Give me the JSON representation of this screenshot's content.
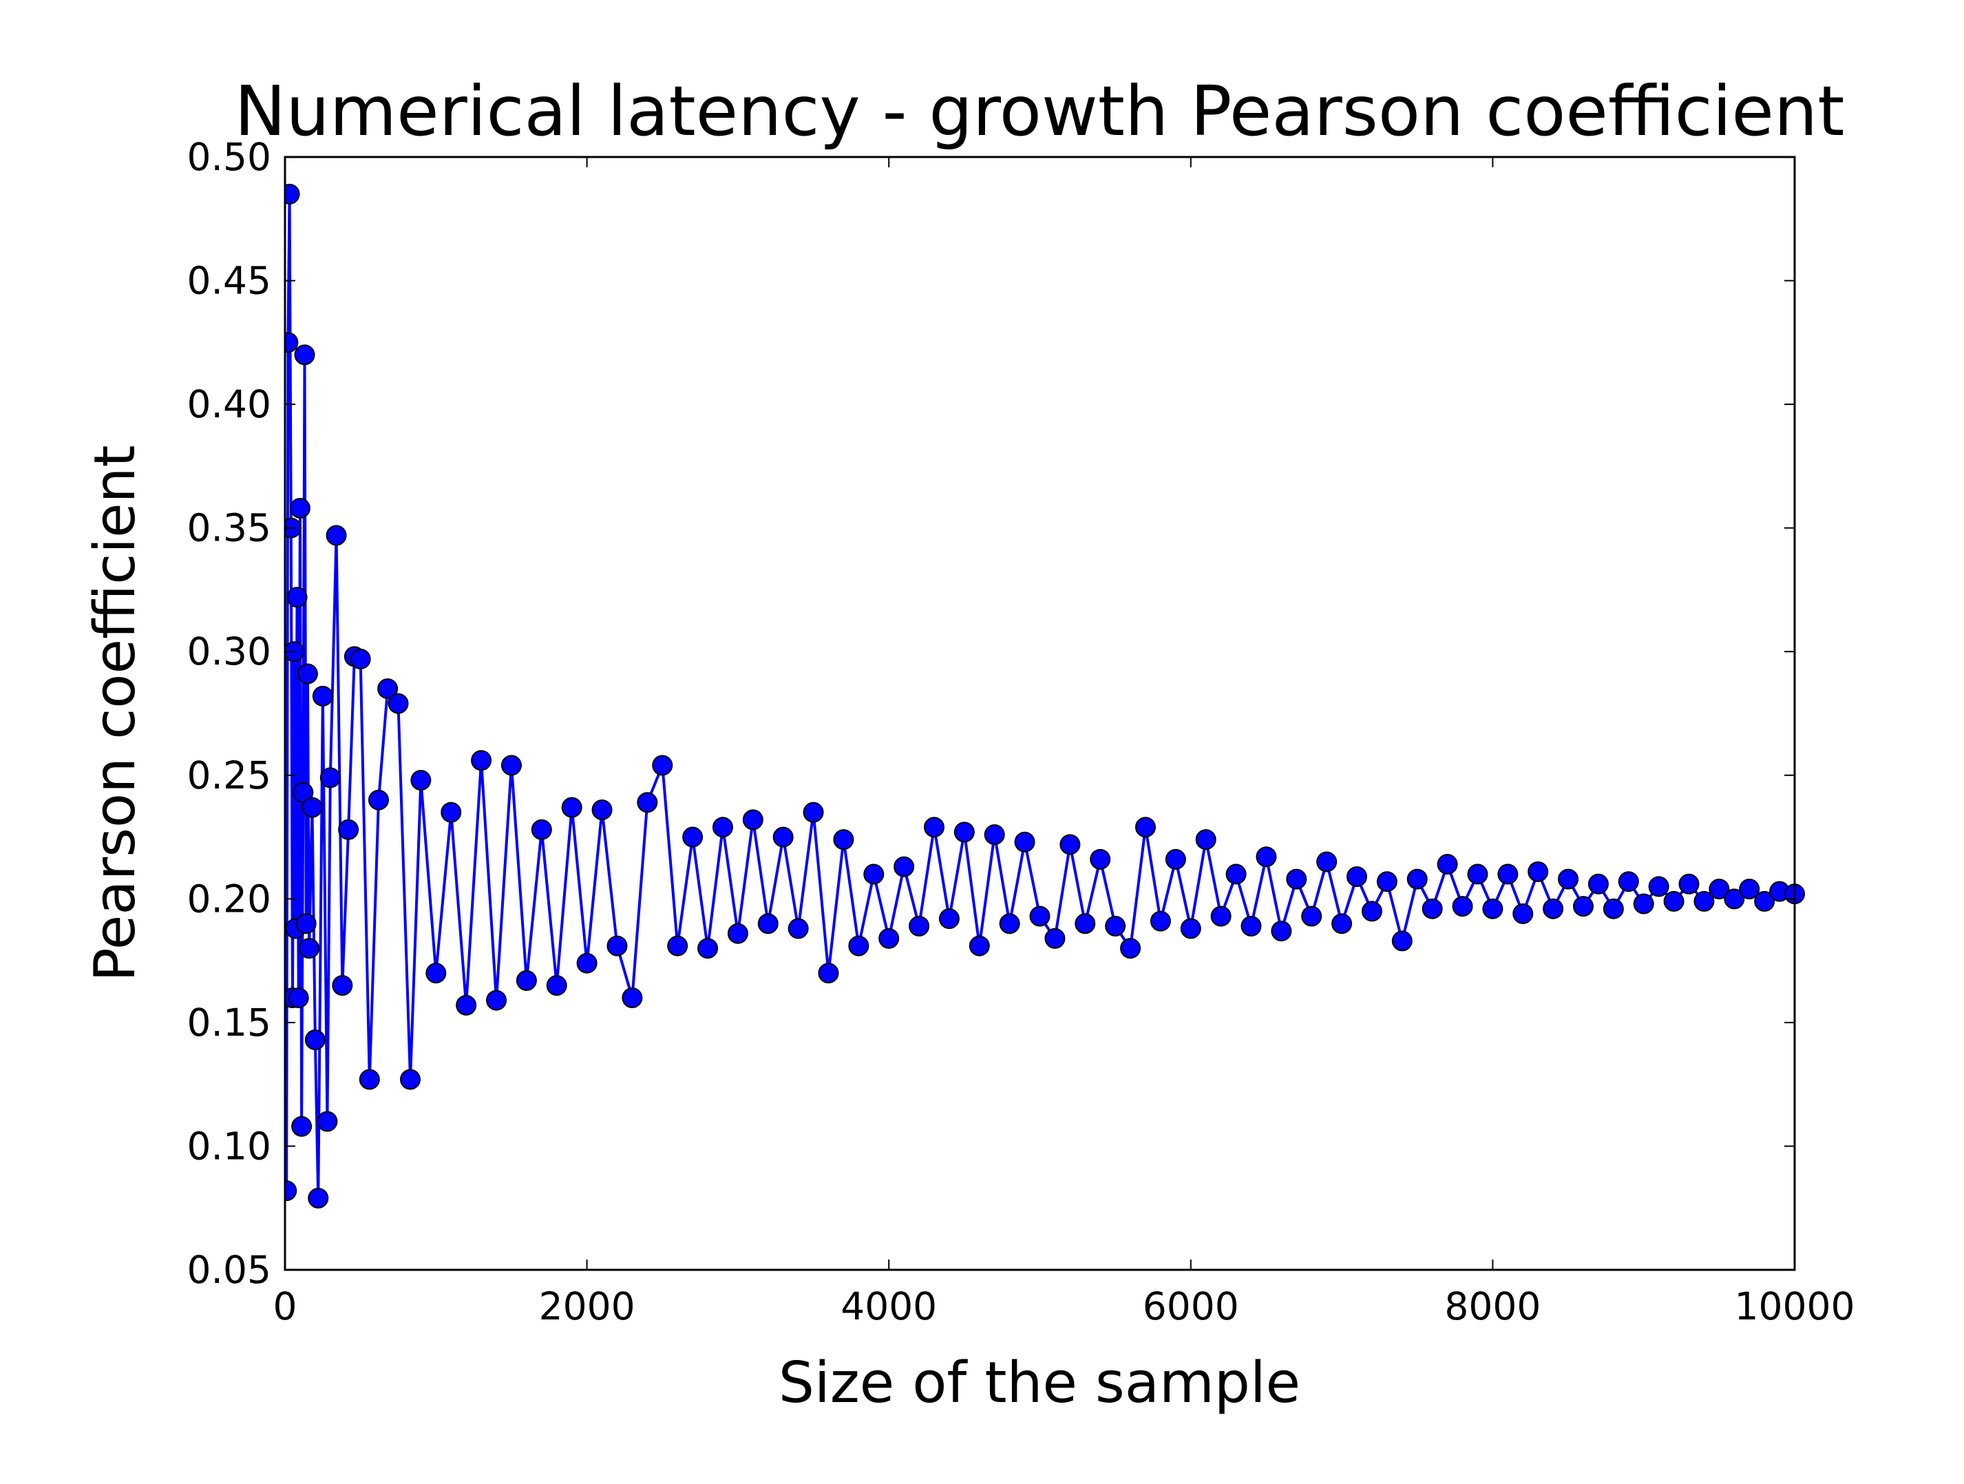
{
  "chart_data": {
    "type": "line",
    "title": "Numerical latency - growth Pearson coefficient",
    "x_label": "Size of the sample",
    "y_label": "Pearson coefficient",
    "xlim": [
      0,
      10000
    ],
    "xticks": [
      0,
      2000,
      4000,
      6000,
      8000,
      10000
    ],
    "ylim": [
      0.05,
      0.5
    ],
    "yticks": [
      0.05,
      {
        "value": 0.1,
        "label": "0.10"
      },
      0.15,
      {
        "value": 0.2,
        "label": "0.20"
      },
      0.25,
      {
        "value": 0.3,
        "label": "0.30"
      },
      0.35,
      {
        "value": 0.4,
        "label": "0.40"
      },
      0.45,
      {
        "value": 0.5,
        "label": "0.50"
      }
    ],
    "grid": false,
    "series": [
      {
        "name": "Pearson coefficient",
        "color": "#0000ff",
        "marker": "circle",
        "x": [
          10,
          20,
          30,
          40,
          50,
          60,
          70,
          80,
          90,
          100,
          110,
          120,
          130,
          140,
          150,
          160,
          180,
          200,
          220,
          250,
          280,
          300,
          340,
          380,
          420,
          460,
          500,
          560,
          620,
          680,
          750,
          830,
          900,
          1000,
          1100,
          1200,
          1300,
          1400,
          1500,
          1600,
          1700,
          1800,
          1900,
          2000,
          2100,
          2200,
          2300,
          2400,
          2500,
          2600,
          2700,
          2800,
          2900,
          3000,
          3100,
          3200,
          3300,
          3400,
          3500,
          3600,
          3700,
          3800,
          3900,
          4000,
          4100,
          4200,
          4300,
          4400,
          4500,
          4600,
          4700,
          4800,
          4900,
          5000,
          5100,
          5200,
          5300,
          5400,
          5500,
          5600,
          5700,
          5800,
          5900,
          6000,
          6100,
          6200,
          6300,
          6400,
          6500,
          6600,
          6700,
          6800,
          6900,
          7000,
          7100,
          7200,
          7300,
          7400,
          7500,
          7600,
          7700,
          7800,
          7900,
          8000,
          8100,
          8200,
          8300,
          8400,
          8500,
          8600,
          8700,
          8800,
          8900,
          9000,
          9100,
          9200,
          9300,
          9400,
          9500,
          9600,
          9700,
          9800,
          9900,
          10000
        ],
        "values": [
          0.082,
          0.425,
          0.485,
          0.35,
          0.16,
          0.3,
          0.188,
          0.322,
          0.16,
          0.358,
          0.108,
          0.243,
          0.42,
          0.19,
          0.291,
          0.18,
          0.237,
          0.143,
          0.079,
          0.282,
          0.11,
          0.249,
          0.347,
          0.165,
          0.228,
          0.298,
          0.297,
          0.127,
          0.24,
          0.285,
          0.279,
          0.127,
          0.248,
          0.17,
          0.235,
          0.157,
          0.256,
          0.159,
          0.254,
          0.167,
          0.228,
          0.165,
          0.237,
          0.174,
          0.236,
          0.181,
          0.16,
          0.239,
          0.254,
          0.181,
          0.225,
          0.18,
          0.229,
          0.186,
          0.232,
          0.19,
          0.225,
          0.188,
          0.235,
          0.17,
          0.224,
          0.181,
          0.21,
          0.184,
          0.213,
          0.189,
          0.229,
          0.192,
          0.227,
          0.181,
          0.226,
          0.19,
          0.223,
          0.193,
          0.184,
          0.222,
          0.19,
          0.216,
          0.189,
          0.18,
          0.229,
          0.191,
          0.216,
          0.188,
          0.224,
          0.193,
          0.21,
          0.189,
          0.217,
          0.187,
          0.208,
          0.193,
          0.215,
          0.19,
          0.209,
          0.195,
          0.207,
          0.183,
          0.208,
          0.196,
          0.214,
          0.197,
          0.21,
          0.196,
          0.21,
          0.194,
          0.211,
          0.196,
          0.208,
          0.197,
          0.206,
          0.196,
          0.207,
          0.198,
          0.205,
          0.199,
          0.206,
          0.199,
          0.204,
          0.2,
          0.204,
          0.199,
          0.203,
          0.202
        ]
      }
    ]
  }
}
